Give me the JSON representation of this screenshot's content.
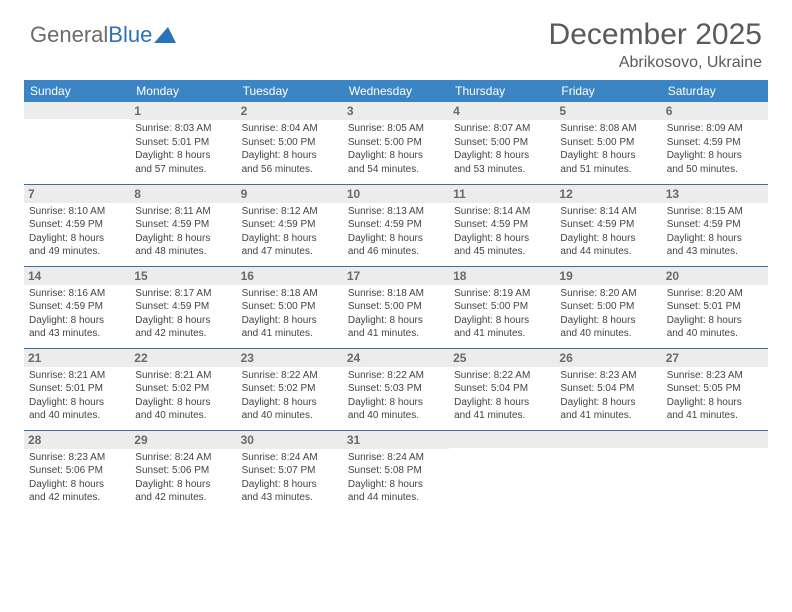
{
  "logo": {
    "part1": "General",
    "part2": "Blue"
  },
  "title": "December 2025",
  "location": "Abrikosovo, Ukraine",
  "colors": {
    "header_bg": "#3b85c5",
    "header_text": "#ffffff",
    "border": "#3b6fa0",
    "day_bg": "#ececec",
    "text": "#444444",
    "logo_blue": "#2a73b8"
  },
  "day_headers": [
    "Sunday",
    "Monday",
    "Tuesday",
    "Wednesday",
    "Thursday",
    "Friday",
    "Saturday"
  ],
  "weeks": [
    [
      {
        "empty": true
      },
      {
        "day": "1",
        "sunrise": "Sunrise: 8:03 AM",
        "sunset": "Sunset: 5:01 PM",
        "daylight1": "Daylight: 8 hours",
        "daylight2": "and 57 minutes."
      },
      {
        "day": "2",
        "sunrise": "Sunrise: 8:04 AM",
        "sunset": "Sunset: 5:00 PM",
        "daylight1": "Daylight: 8 hours",
        "daylight2": "and 56 minutes."
      },
      {
        "day": "3",
        "sunrise": "Sunrise: 8:05 AM",
        "sunset": "Sunset: 5:00 PM",
        "daylight1": "Daylight: 8 hours",
        "daylight2": "and 54 minutes."
      },
      {
        "day": "4",
        "sunrise": "Sunrise: 8:07 AM",
        "sunset": "Sunset: 5:00 PM",
        "daylight1": "Daylight: 8 hours",
        "daylight2": "and 53 minutes."
      },
      {
        "day": "5",
        "sunrise": "Sunrise: 8:08 AM",
        "sunset": "Sunset: 5:00 PM",
        "daylight1": "Daylight: 8 hours",
        "daylight2": "and 51 minutes."
      },
      {
        "day": "6",
        "sunrise": "Sunrise: 8:09 AM",
        "sunset": "Sunset: 4:59 PM",
        "daylight1": "Daylight: 8 hours",
        "daylight2": "and 50 minutes."
      }
    ],
    [
      {
        "day": "7",
        "sunrise": "Sunrise: 8:10 AM",
        "sunset": "Sunset: 4:59 PM",
        "daylight1": "Daylight: 8 hours",
        "daylight2": "and 49 minutes."
      },
      {
        "day": "8",
        "sunrise": "Sunrise: 8:11 AM",
        "sunset": "Sunset: 4:59 PM",
        "daylight1": "Daylight: 8 hours",
        "daylight2": "and 48 minutes."
      },
      {
        "day": "9",
        "sunrise": "Sunrise: 8:12 AM",
        "sunset": "Sunset: 4:59 PM",
        "daylight1": "Daylight: 8 hours",
        "daylight2": "and 47 minutes."
      },
      {
        "day": "10",
        "sunrise": "Sunrise: 8:13 AM",
        "sunset": "Sunset: 4:59 PM",
        "daylight1": "Daylight: 8 hours",
        "daylight2": "and 46 minutes."
      },
      {
        "day": "11",
        "sunrise": "Sunrise: 8:14 AM",
        "sunset": "Sunset: 4:59 PM",
        "daylight1": "Daylight: 8 hours",
        "daylight2": "and 45 minutes."
      },
      {
        "day": "12",
        "sunrise": "Sunrise: 8:14 AM",
        "sunset": "Sunset: 4:59 PM",
        "daylight1": "Daylight: 8 hours",
        "daylight2": "and 44 minutes."
      },
      {
        "day": "13",
        "sunrise": "Sunrise: 8:15 AM",
        "sunset": "Sunset: 4:59 PM",
        "daylight1": "Daylight: 8 hours",
        "daylight2": "and 43 minutes."
      }
    ],
    [
      {
        "day": "14",
        "sunrise": "Sunrise: 8:16 AM",
        "sunset": "Sunset: 4:59 PM",
        "daylight1": "Daylight: 8 hours",
        "daylight2": "and 43 minutes."
      },
      {
        "day": "15",
        "sunrise": "Sunrise: 8:17 AM",
        "sunset": "Sunset: 4:59 PM",
        "daylight1": "Daylight: 8 hours",
        "daylight2": "and 42 minutes."
      },
      {
        "day": "16",
        "sunrise": "Sunrise: 8:18 AM",
        "sunset": "Sunset: 5:00 PM",
        "daylight1": "Daylight: 8 hours",
        "daylight2": "and 41 minutes."
      },
      {
        "day": "17",
        "sunrise": "Sunrise: 8:18 AM",
        "sunset": "Sunset: 5:00 PM",
        "daylight1": "Daylight: 8 hours",
        "daylight2": "and 41 minutes."
      },
      {
        "day": "18",
        "sunrise": "Sunrise: 8:19 AM",
        "sunset": "Sunset: 5:00 PM",
        "daylight1": "Daylight: 8 hours",
        "daylight2": "and 41 minutes."
      },
      {
        "day": "19",
        "sunrise": "Sunrise: 8:20 AM",
        "sunset": "Sunset: 5:00 PM",
        "daylight1": "Daylight: 8 hours",
        "daylight2": "and 40 minutes."
      },
      {
        "day": "20",
        "sunrise": "Sunrise: 8:20 AM",
        "sunset": "Sunset: 5:01 PM",
        "daylight1": "Daylight: 8 hours",
        "daylight2": "and 40 minutes."
      }
    ],
    [
      {
        "day": "21",
        "sunrise": "Sunrise: 8:21 AM",
        "sunset": "Sunset: 5:01 PM",
        "daylight1": "Daylight: 8 hours",
        "daylight2": "and 40 minutes."
      },
      {
        "day": "22",
        "sunrise": "Sunrise: 8:21 AM",
        "sunset": "Sunset: 5:02 PM",
        "daylight1": "Daylight: 8 hours",
        "daylight2": "and 40 minutes."
      },
      {
        "day": "23",
        "sunrise": "Sunrise: 8:22 AM",
        "sunset": "Sunset: 5:02 PM",
        "daylight1": "Daylight: 8 hours",
        "daylight2": "and 40 minutes."
      },
      {
        "day": "24",
        "sunrise": "Sunrise: 8:22 AM",
        "sunset": "Sunset: 5:03 PM",
        "daylight1": "Daylight: 8 hours",
        "daylight2": "and 40 minutes."
      },
      {
        "day": "25",
        "sunrise": "Sunrise: 8:22 AM",
        "sunset": "Sunset: 5:04 PM",
        "daylight1": "Daylight: 8 hours",
        "daylight2": "and 41 minutes."
      },
      {
        "day": "26",
        "sunrise": "Sunrise: 8:23 AM",
        "sunset": "Sunset: 5:04 PM",
        "daylight1": "Daylight: 8 hours",
        "daylight2": "and 41 minutes."
      },
      {
        "day": "27",
        "sunrise": "Sunrise: 8:23 AM",
        "sunset": "Sunset: 5:05 PM",
        "daylight1": "Daylight: 8 hours",
        "daylight2": "and 41 minutes."
      }
    ],
    [
      {
        "day": "28",
        "sunrise": "Sunrise: 8:23 AM",
        "sunset": "Sunset: 5:06 PM",
        "daylight1": "Daylight: 8 hours",
        "daylight2": "and 42 minutes."
      },
      {
        "day": "29",
        "sunrise": "Sunrise: 8:24 AM",
        "sunset": "Sunset: 5:06 PM",
        "daylight1": "Daylight: 8 hours",
        "daylight2": "and 42 minutes."
      },
      {
        "day": "30",
        "sunrise": "Sunrise: 8:24 AM",
        "sunset": "Sunset: 5:07 PM",
        "daylight1": "Daylight: 8 hours",
        "daylight2": "and 43 minutes."
      },
      {
        "day": "31",
        "sunrise": "Sunrise: 8:24 AM",
        "sunset": "Sunset: 5:08 PM",
        "daylight1": "Daylight: 8 hours",
        "daylight2": "and 44 minutes."
      },
      {
        "empty": true
      },
      {
        "empty": true
      },
      {
        "empty": true
      }
    ]
  ]
}
